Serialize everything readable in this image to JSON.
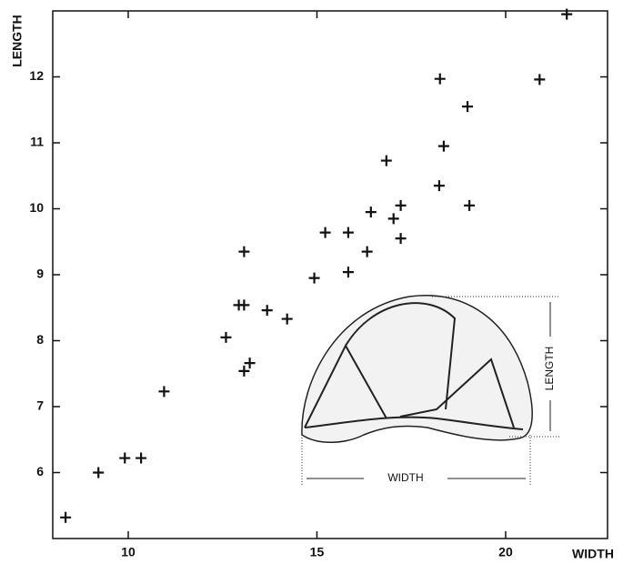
{
  "chart_data": {
    "type": "scatter",
    "x_label": "WIDTH",
    "y_label": "LENGTH",
    "annotations": [
      "LENGTH",
      "WIDTH"
    ],
    "color": "#111111",
    "marker": "+",
    "xlim": [
      8,
      22.7
    ],
    "xticks": [
      10,
      15,
      20
    ],
    "ylim": [
      5,
      13
    ],
    "yticks": [
      6,
      7,
      8,
      9,
      10,
      11,
      12
    ],
    "x": [
      8.34,
      9.21,
      9.91,
      10.34,
      10.95,
      12.59,
      12.93,
      13.07,
      13.07,
      13.07,
      13.22,
      13.68,
      14.21,
      14.93,
      15.22,
      15.83,
      15.83,
      16.33,
      16.43,
      16.84,
      17.03,
      17.22,
      17.22,
      18.26,
      18.24,
      18.36,
      18.99,
      19.04,
      20.9,
      21.62
    ],
    "y": [
      5.32,
      6.0,
      6.22,
      6.22,
      7.23,
      8.05,
      8.54,
      8.54,
      9.35,
      7.54,
      7.66,
      8.46,
      8.33,
      8.95,
      9.64,
      9.64,
      9.04,
      9.35,
      9.95,
      10.73,
      9.85,
      10.05,
      9.55,
      11.97,
      10.35,
      10.95,
      11.55,
      10.05,
      11.96,
      12.95
    ]
  }
}
